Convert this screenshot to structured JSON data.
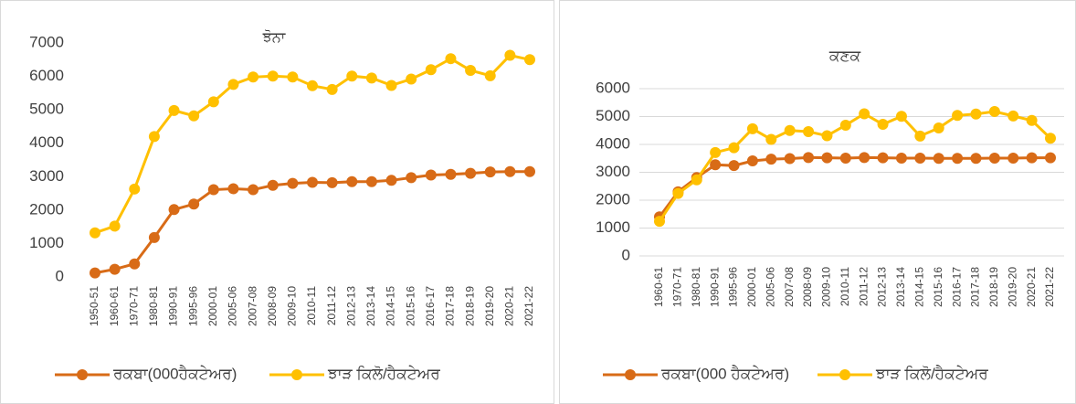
{
  "chart_data": [
    {
      "type": "line",
      "title": "ਝੋਨਾ",
      "categories": [
        "1950-51",
        "1960-61",
        "1970-71",
        "1980-81",
        "1990-91",
        "1995-96",
        "2000-01",
        "2005-06",
        "2007-08",
        "2008-09",
        "2009-10",
        "2010-11",
        "2011-12",
        "2012-13",
        "2013-14",
        "2014-15",
        "2015-16",
        "2016-17",
        "2017-18",
        "2018-19",
        "2019-20",
        "2020-21",
        "2021-22"
      ],
      "series": [
        {
          "name": "ਰਕਬਾ(000ਹੈਕਟੇਅਰ)",
          "color": "#d86b17",
          "values": [
            120,
            230,
            390,
            1180,
            2015,
            2180,
            2610,
            2640,
            2610,
            2740,
            2800,
            2830,
            2820,
            2850,
            2850,
            2890,
            2970,
            3050,
            3070,
            3100,
            3140,
            3150,
            3150
          ]
        },
        {
          "name": "ਝਾੜ ਕਿਲੋ/ਹੈਕਟੇਅਰ",
          "color": "#ffc000",
          "values": [
            1320,
            1520,
            2630,
            4200,
            4980,
            4820,
            5240,
            5760,
            5980,
            6010,
            5980,
            5720,
            5610,
            6010,
            5950,
            5730,
            5920,
            6200,
            6530,
            6180,
            6020,
            6630,
            6500
          ]
        }
      ],
      "ylim": [
        0,
        7000
      ],
      "yticks": [
        0,
        1000,
        2000,
        3000,
        4000,
        5000,
        6000,
        7000
      ],
      "grid": false,
      "legend": "bottom"
    },
    {
      "type": "line",
      "title": "ਕਣਕ",
      "categories": [
        "1960-61",
        "1970-71",
        "1980-81",
        "1990-91",
        "1995-96",
        "2000-01",
        "2005-06",
        "2007-08",
        "2008-09",
        "2009-10",
        "2010-11",
        "2011-12",
        "2012-13",
        "2013-14",
        "2014-15",
        "2015-16",
        "2016-17",
        "2017-18",
        "2018-19",
        "2019-20",
        "2020-21",
        "2021-22"
      ],
      "series": [
        {
          "name": "ਰਕਬਾ(000 ਹੈਕਟੇਅਰ)",
          "color": "#d86b17",
          "values": [
            1400,
            2300,
            2810,
            3270,
            3240,
            3410,
            3470,
            3490,
            3530,
            3520,
            3510,
            3530,
            3520,
            3510,
            3510,
            3500,
            3500,
            3500,
            3510,
            3510,
            3520,
            3520
          ]
        },
        {
          "name": "ਝਾੜ ਕਿਲੋ/ਹੈਕਟੇਅਰ",
          "color": "#ffc000",
          "values": [
            1240,
            2240,
            2730,
            3710,
            3880,
            4560,
            4180,
            4500,
            4460,
            4310,
            4690,
            5100,
            4720,
            5010,
            4300,
            4590,
            5040,
            5090,
            5180,
            5020,
            4860,
            4220
          ]
        }
      ],
      "ylim": [
        0,
        6000
      ],
      "yticks": [
        0,
        1000,
        2000,
        3000,
        4000,
        5000,
        6000
      ],
      "grid": true,
      "legend": "bottom"
    }
  ]
}
